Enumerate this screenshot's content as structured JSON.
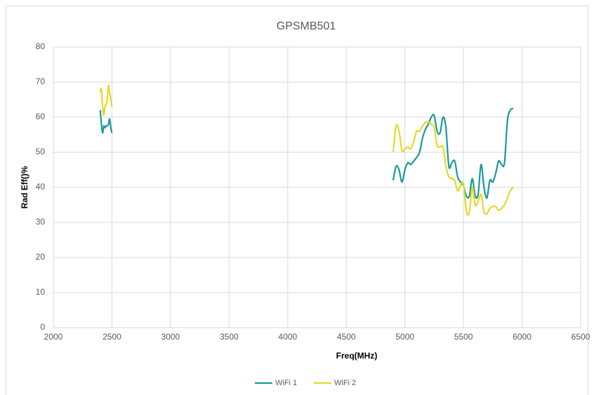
{
  "chart_data": {
    "type": "line",
    "title": "GPSMB501",
    "x_label": "Freq(MHz)",
    "y_label": "Rad Eff()%",
    "x": [
      2400,
      2410,
      2420,
      2430,
      2440,
      2450,
      2460,
      2470,
      2480,
      2490,
      2500,
      3700,
      4900,
      4925,
      4950,
      4975,
      5000,
      5025,
      5050,
      5075,
      5100,
      5125,
      5150,
      5175,
      5200,
      5225,
      5250,
      5275,
      5300,
      5325,
      5350,
      5375,
      5400,
      5425,
      5450,
      5475,
      5500,
      5525,
      5550,
      5575,
      5600,
      5625,
      5650,
      5675,
      5700,
      5725,
      5750,
      5775,
      5800,
      5825,
      5850,
      5875,
      5900,
      5925
    ],
    "series": [
      {
        "name": "WiFi 1",
        "color": "#1a9a9a",
        "values": [
          62,
          58,
          55.5,
          57.5,
          57,
          57.5,
          57.5,
          58,
          59.5,
          57,
          55.5,
          null,
          42,
          46,
          45,
          41.5,
          45,
          47,
          46.5,
          47.5,
          48.5,
          50,
          54,
          56.5,
          58,
          60,
          60.5,
          56,
          55.5,
          60,
          57,
          46,
          47,
          47.5,
          43,
          41.5,
          40.5,
          37.5,
          37.5,
          42.5,
          37.5,
          38,
          46.5,
          40,
          37,
          42,
          41.5,
          44,
          47.5,
          46.5,
          47,
          59,
          62,
          62.5
        ]
      },
      {
        "name": "WiFi 2",
        "color": "#e6d82a",
        "values": [
          67,
          68,
          63,
          60.5,
          63,
          63.5,
          65,
          69,
          67,
          65,
          63,
          null,
          50,
          57.5,
          56,
          50.5,
          51,
          51.5,
          51,
          53,
          56,
          56,
          57.5,
          58.5,
          58.5,
          58,
          57,
          52,
          51.5,
          51.5,
          46,
          43,
          42.5,
          42,
          39,
          40.5,
          41,
          33,
          33,
          40,
          35,
          36,
          38,
          33,
          32.5,
          34,
          34.5,
          34.5,
          33.5,
          34,
          35,
          37,
          39,
          40
        ]
      }
    ],
    "xlim": [
      2000,
      6500
    ],
    "xticks": [
      2000,
      2500,
      3000,
      3500,
      4000,
      4500,
      5000,
      5500,
      6000,
      6500
    ],
    "ylim": [
      0,
      80
    ],
    "yticks": [
      0,
      10,
      20,
      30,
      40,
      50,
      60,
      70,
      80
    ],
    "grid": true,
    "legend": "bottom",
    "smooth": true
  }
}
